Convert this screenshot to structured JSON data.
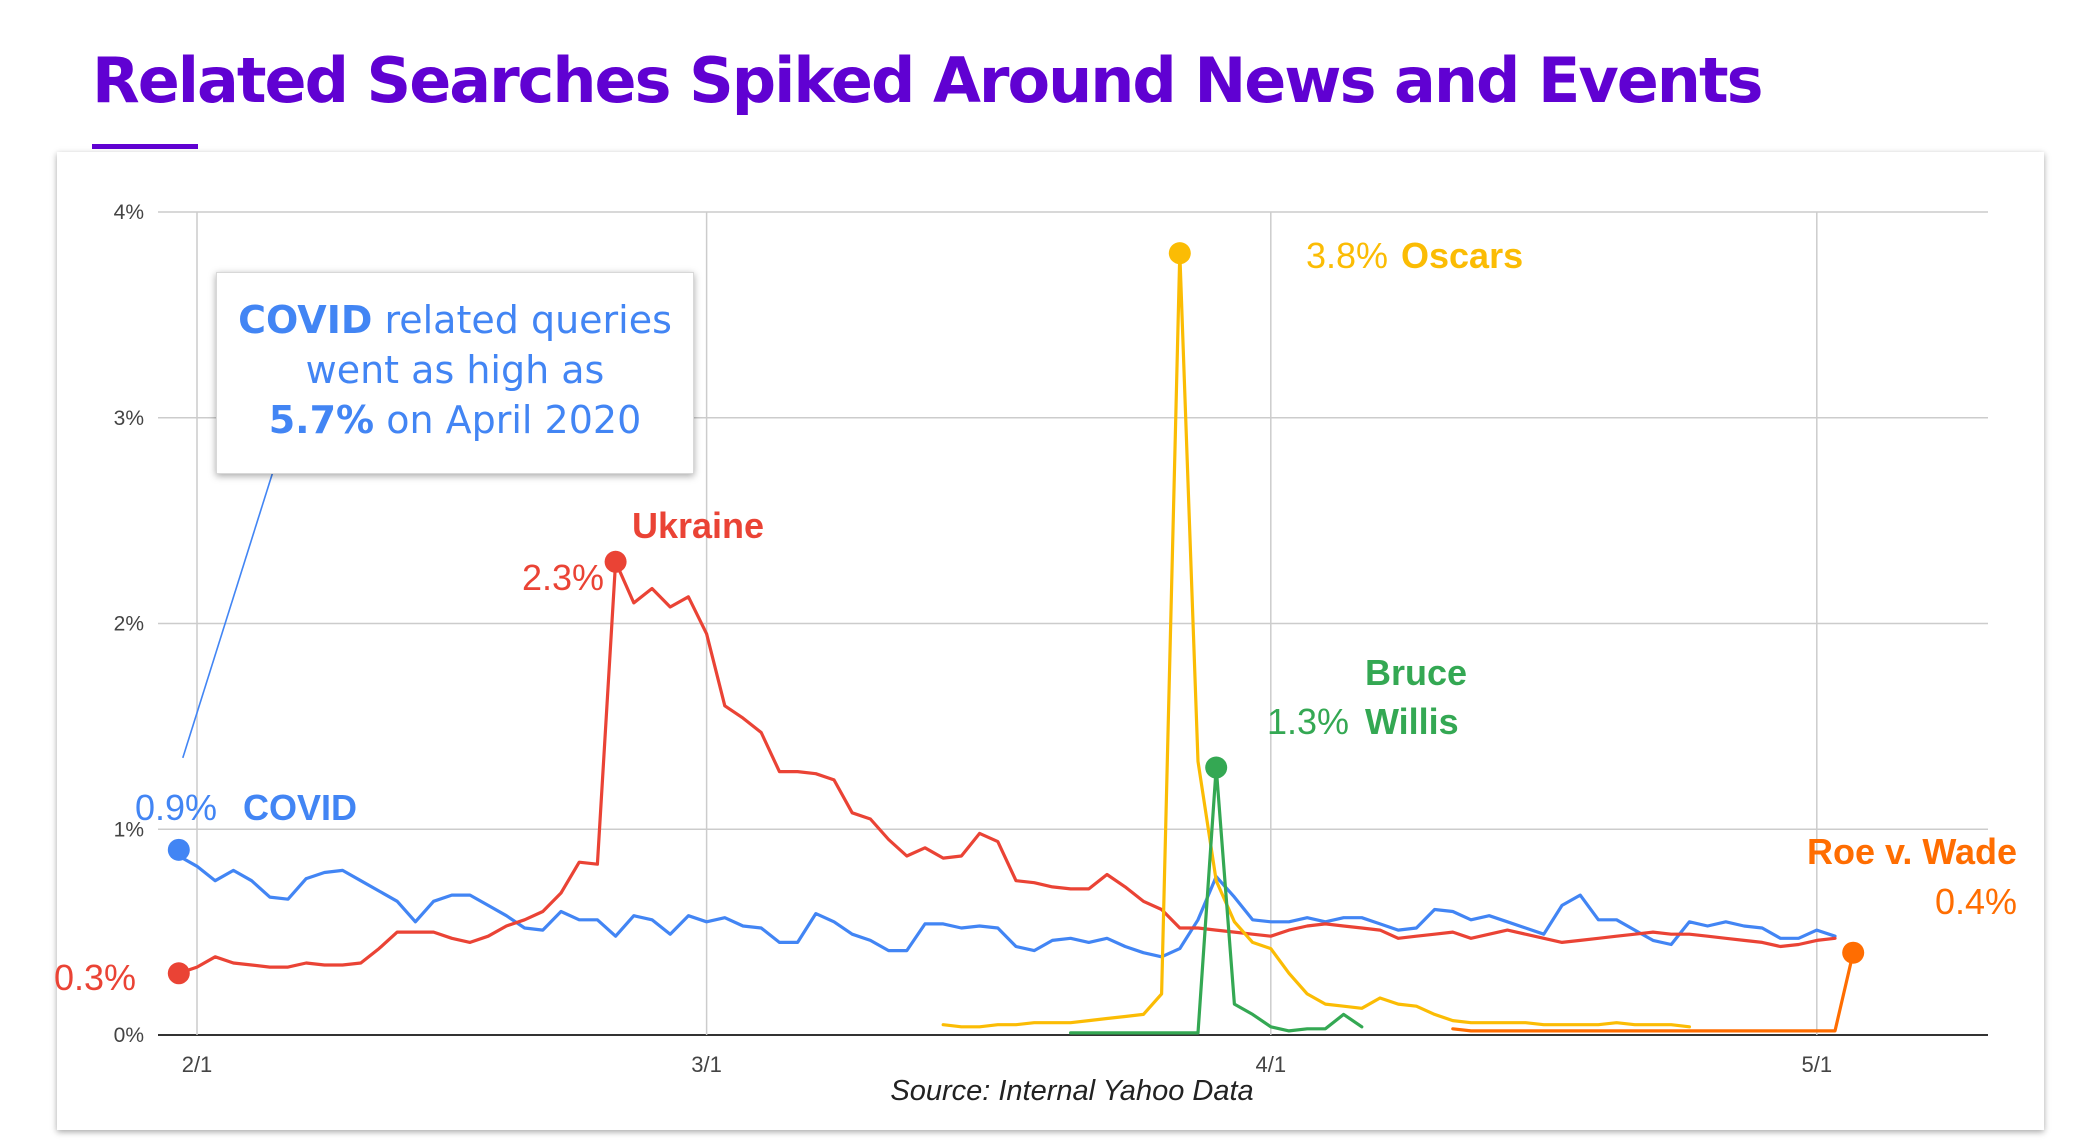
{
  "title": "Related Searches Spiked Around News and Events",
  "source": "Source: Internal Yahoo Data",
  "callout": {
    "strong1": "COVID",
    "text1": " related queries",
    "line2": "went as high as",
    "strong3": "5.7%",
    "text3": " on April 2020"
  },
  "colors": {
    "title": "#6001d2",
    "covid": "#4285f4",
    "ukraine": "#ea4335",
    "oscars": "#fbbc04",
    "bruce_willis": "#34a853",
    "roe_v_wade": "#ff6d01"
  },
  "annotations": {
    "covid_value": "0.9%",
    "covid_name": "COVID",
    "ukraine_start": "0.3%",
    "ukraine_peak": "2.3%",
    "ukraine_name": "Ukraine",
    "oscars_value": "3.8%",
    "oscars_name": "Oscars",
    "bruce_value": "1.3%",
    "bruce_name_1": "Bruce",
    "bruce_name_2": "Willis",
    "roe_name": "Roe v. Wade",
    "roe_value": "0.4%"
  },
  "chart_data": {
    "type": "line",
    "title": "Related Searches Spiked Around News and Events",
    "xlabel": "",
    "ylabel": "",
    "x_unit": "day index from 2/1",
    "x_ticks": [
      {
        "x": 0,
        "label": "2/1"
      },
      {
        "x": 28,
        "label": "3/1"
      },
      {
        "x": 59,
        "label": "4/1"
      },
      {
        "x": 89,
        "label": "5/1"
      }
    ],
    "ylim": [
      0,
      4
    ],
    "y_ticks": [
      {
        "y": 0,
        "label": "0%"
      },
      {
        "y": 1,
        "label": "1%"
      },
      {
        "y": 2,
        "label": "2%"
      },
      {
        "y": 3,
        "label": "3%"
      },
      {
        "y": 4,
        "label": "4%"
      }
    ],
    "grid": true,
    "series": [
      {
        "name": "COVID",
        "color": "#4285f4",
        "x_start": -1,
        "values": [
          0.87,
          0.82,
          0.75,
          0.8,
          0.75,
          0.67,
          0.66,
          0.76,
          0.79,
          0.8,
          0.75,
          0.7,
          0.65,
          0.55,
          0.65,
          0.68,
          0.68,
          0.63,
          0.58,
          0.52,
          0.51,
          0.6,
          0.56,
          0.56,
          0.48,
          0.58,
          0.56,
          0.49,
          0.58,
          0.55,
          0.57,
          0.53,
          0.52,
          0.45,
          0.45,
          0.59,
          0.55,
          0.49,
          0.46,
          0.41,
          0.41,
          0.54,
          0.54,
          0.52,
          0.53,
          0.52,
          0.43,
          0.41,
          0.46,
          0.47,
          0.45,
          0.47,
          0.43,
          0.4,
          0.38,
          0.42,
          0.56,
          0.77,
          0.67,
          0.56,
          0.55,
          0.55,
          0.57,
          0.55,
          0.57,
          0.57,
          0.54,
          0.51,
          0.52,
          0.61,
          0.6,
          0.56,
          0.58,
          0.55,
          0.52,
          0.49,
          0.63,
          0.68,
          0.56,
          0.56,
          0.51,
          0.46,
          0.44,
          0.55,
          0.53,
          0.55,
          0.53,
          0.52,
          0.47,
          0.47,
          0.51,
          0.48
        ]
      },
      {
        "name": "Ukraine",
        "color": "#ea4335",
        "x_start": -1,
        "values": [
          0.3,
          0.33,
          0.38,
          0.35,
          0.34,
          0.33,
          0.33,
          0.35,
          0.34,
          0.34,
          0.35,
          0.42,
          0.5,
          0.5,
          0.5,
          0.47,
          0.45,
          0.48,
          0.53,
          0.56,
          0.6,
          0.69,
          0.84,
          0.83,
          2.3,
          2.1,
          2.17,
          2.08,
          2.13,
          1.95,
          1.6,
          1.54,
          1.47,
          1.28,
          1.28,
          1.27,
          1.24,
          1.08,
          1.05,
          0.95,
          0.87,
          0.91,
          0.86,
          0.87,
          0.98,
          0.94,
          0.75,
          0.74,
          0.72,
          0.71,
          0.71,
          0.78,
          0.72,
          0.65,
          0.61,
          0.52,
          0.52,
          0.51,
          0.5,
          0.49,
          0.48,
          0.51,
          0.53,
          0.54,
          0.53,
          0.52,
          0.51,
          0.47,
          0.48,
          0.49,
          0.5,
          0.47,
          0.49,
          0.51,
          0.49,
          0.47,
          0.45,
          0.46,
          0.47,
          0.48,
          0.49,
          0.5,
          0.49,
          0.49,
          0.48,
          0.47,
          0.46,
          0.45,
          0.43,
          0.44,
          0.46,
          0.47
        ]
      },
      {
        "name": "Oscars",
        "color": "#fbbc04",
        "x_start": 41,
        "values": [
          0.05,
          0.04,
          0.04,
          0.05,
          0.05,
          0.06,
          0.06,
          0.06,
          0.07,
          0.08,
          0.09,
          0.1,
          0.2,
          3.8,
          1.33,
          0.75,
          0.55,
          0.45,
          0.42,
          0.3,
          0.2,
          0.15,
          0.14,
          0.13,
          0.18,
          0.15,
          0.14,
          0.1,
          0.07,
          0.06,
          0.06,
          0.06,
          0.06,
          0.05,
          0.05,
          0.05,
          0.05,
          0.06,
          0.05,
          0.05,
          0.05,
          0.04
        ]
      },
      {
        "name": "Bruce Willis",
        "color": "#34a853",
        "x_start": 48,
        "values": [
          0.01,
          0.01,
          0.01,
          0.01,
          0.01,
          0.01,
          0.01,
          0.01,
          1.3,
          0.15,
          0.1,
          0.04,
          0.02,
          0.03,
          0.03,
          0.1,
          0.04
        ]
      },
      {
        "name": "Roe v. Wade",
        "color": "#ff6d01",
        "x_start": 69,
        "values": [
          0.03,
          0.02,
          0.02,
          0.02,
          0.02,
          0.02,
          0.02,
          0.02,
          0.02,
          0.02,
          0.02,
          0.02,
          0.02,
          0.02,
          0.02,
          0.02,
          0.02,
          0.02,
          0.02,
          0.02,
          0.02,
          0.02,
          0.4
        ]
      }
    ],
    "highlight_points": [
      {
        "series": "COVID",
        "x": -1,
        "y": 0.9
      },
      {
        "series": "Ukraine",
        "x": -1,
        "y": 0.3
      },
      {
        "series": "Ukraine",
        "x": 23,
        "y": 2.3
      },
      {
        "series": "Oscars",
        "x": 54,
        "y": 3.8
      },
      {
        "series": "Bruce Willis",
        "x": 56,
        "y": 1.3
      },
      {
        "series": "Roe v. Wade",
        "x": 91,
        "y": 0.4
      }
    ]
  }
}
